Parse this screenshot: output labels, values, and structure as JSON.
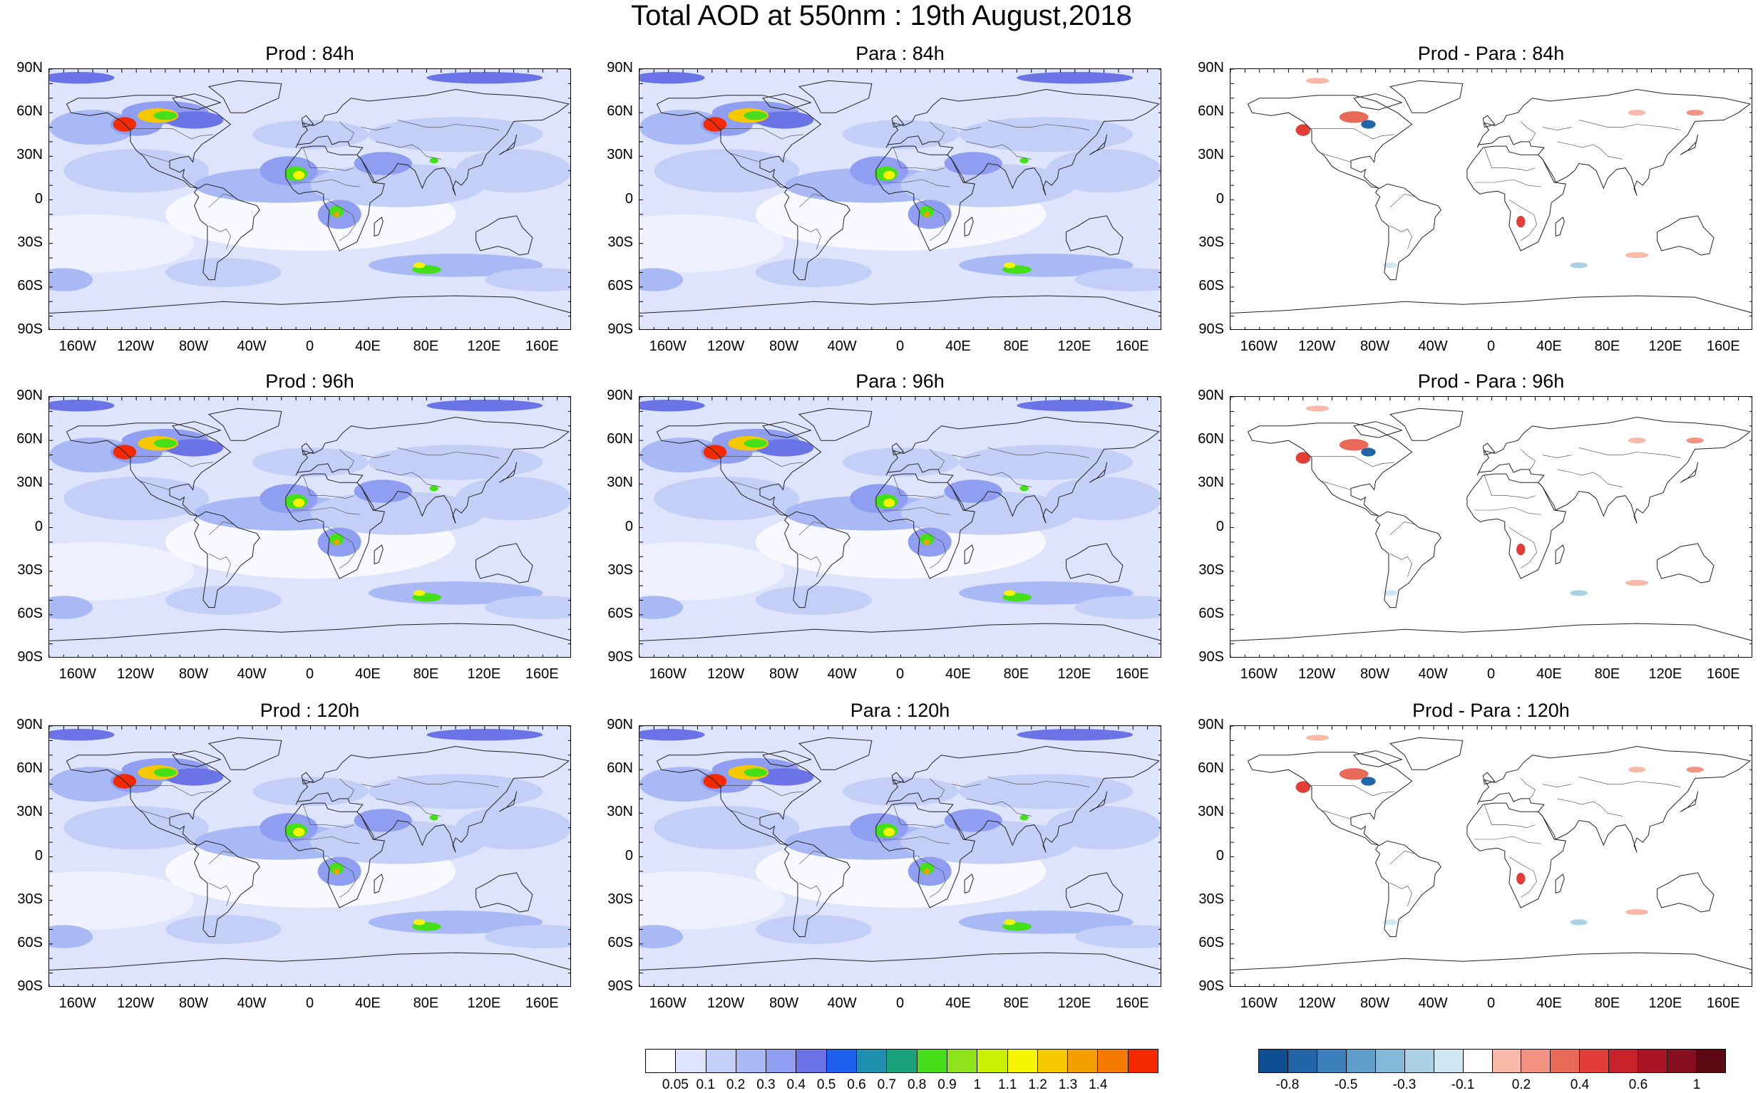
{
  "title": "Total AOD at 550nm : 19th August,2018",
  "lat_labels": [
    "90N",
    "60N",
    "30N",
    "0",
    "30S",
    "60S",
    "90S"
  ],
  "lon_labels": [
    "160W",
    "120W",
    "80W",
    "40W",
    "0",
    "40E",
    "80E",
    "120E",
    "160E"
  ],
  "panels": [
    {
      "title": "Prod : 84h",
      "kind": "aod"
    },
    {
      "title": "Para : 84h",
      "kind": "aod"
    },
    {
      "title": "Prod - Para : 84h",
      "kind": "diff"
    },
    {
      "title": "Prod : 96h",
      "kind": "aod"
    },
    {
      "title": "Para : 96h",
      "kind": "aod"
    },
    {
      "title": "Prod - Para : 96h",
      "kind": "diff"
    },
    {
      "title": "Prod : 120h",
      "kind": "aod"
    },
    {
      "title": "Para : 120h",
      "kind": "aod"
    },
    {
      "title": "Prod - Para : 120h",
      "kind": "diff"
    }
  ],
  "aod_colorbar": {
    "colors": [
      "#ffffff",
      "#dde4fb",
      "#c4cff8",
      "#a9b9f5",
      "#8f9ef0",
      "#6b74e6",
      "#1e60f0",
      "#1f8fb0",
      "#1aa27a",
      "#45e01a",
      "#8fe31a",
      "#c8f000",
      "#f5f500",
      "#f5c800",
      "#f5a000",
      "#f57a00",
      "#f52a00"
    ],
    "labels": [
      "0.05",
      "0.1",
      "0.2",
      "0.3",
      "0.4",
      "0.5",
      "0.6",
      "0.7",
      "0.8",
      "0.9",
      "1",
      "1.1",
      "1.2",
      "1.3",
      "1.4"
    ]
  },
  "diff_colorbar": {
    "colors": [
      "#0d4f91",
      "#2165a6",
      "#3a7fba",
      "#5f9dca",
      "#84b8d8",
      "#a9d0e3",
      "#cfe7f0",
      "#ffffff",
      "#f8b9a9",
      "#f29383",
      "#ea6a5a",
      "#e03e36",
      "#c8232a",
      "#aa1526",
      "#861020",
      "#5e0a14"
    ],
    "labels": [
      "-0.8",
      "-0.5",
      "-0.3",
      "-0.1",
      "0.2",
      "0.4",
      "0.6",
      "1"
    ]
  }
}
